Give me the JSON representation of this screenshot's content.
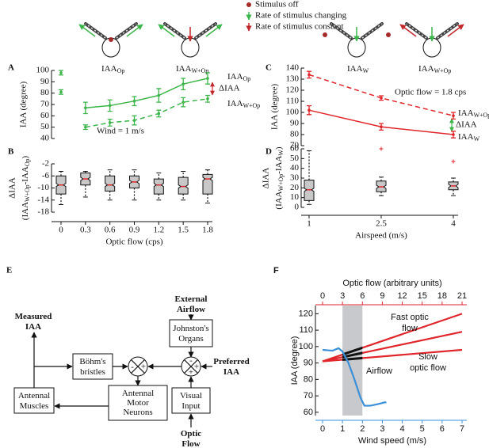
{
  "header": {
    "legend": [
      {
        "label": "Stimulus off"
      },
      {
        "label": "Rate of stimulus changing"
      },
      {
        "label": "Rate of stimulus constant"
      }
    ],
    "icons": [
      {
        "main": "IAA",
        "sub": "Op"
      },
      {
        "main": "IAA",
        "sub": "W+Op"
      },
      {
        "main": "IAA",
        "sub": "W"
      },
      {
        "main": "IAA",
        "sub": "W+Op"
      }
    ]
  },
  "chart_data": [
    {
      "panel": "A",
      "type": "line",
      "ylabel": "IAA (degree)",
      "xlim": [
        0,
        1.8
      ],
      "ylim": [
        40,
        100
      ],
      "yticks": [
        40,
        50,
        60,
        70,
        80,
        90,
        100
      ],
      "series": [
        {
          "name": {
            "main": "IAA",
            "sub": "Op"
          },
          "color": "#3cb54a",
          "line": "solid",
          "x": [
            0.3,
            0.6,
            0.9,
            1.2,
            1.5,
            1.8
          ],
          "values": [
            67,
            69,
            73,
            78,
            88,
            93
          ],
          "errors": [
            5,
            5,
            4,
            6,
            5,
            5
          ]
        },
        {
          "name": {
            "main": "IAA",
            "sub": "W+Op"
          },
          "color": "#3cb54a",
          "line": "dashed",
          "x": [
            0.3,
            0.6,
            0.9,
            1.2,
            1.5,
            1.8
          ],
          "values": [
            50,
            54,
            56,
            62,
            72,
            75
          ],
          "errors": [
            2,
            3,
            4,
            3,
            4,
            3
          ]
        },
        {
          "color": "#3cb54a",
          "line": "none",
          "x": [
            0
          ],
          "values": [
            98
          ],
          "errors": [
            2
          ]
        },
        {
          "color": "#3cb54a",
          "line": "none",
          "x": [
            0
          ],
          "values": [
            81
          ],
          "errors": [
            2
          ]
        }
      ],
      "annotations": [
        {
          "text": "ΔIAA",
          "color": "#e0262b"
        },
        {
          "text": "Wind = 1 m/s"
        }
      ]
    },
    {
      "panel": "B",
      "type": "box",
      "ylabel": "ΔIAA",
      "ylabel2": [
        {
          "text": "(IAA"
        },
        {
          "text": "W+Op",
          "sub": true
        },
        {
          "text": "-IAA"
        },
        {
          "text": "Op",
          "sub": true
        },
        {
          "text": ")"
        }
      ],
      "xlabel": "Optic flow  (cps)",
      "x": [
        0,
        0.3,
        0.6,
        0.9,
        1.2,
        1.5,
        1.8
      ],
      "xlim": [
        0,
        1.8
      ],
      "xticks": [
        0,
        0.3,
        0.6,
        0.9,
        1.2,
        1.5,
        1.8
      ],
      "ylim": [
        -18,
        -2
      ],
      "yticks": [
        -2,
        -6,
        -10,
        -14,
        -18
      ],
      "color": "#c8c8c8",
      "median_color": "#e0262b",
      "boxes": [
        {
          "whisker_low": -15.5,
          "q1": -12,
          "median": -9,
          "q3": -6,
          "whisker_high": -4.5,
          "outliers": []
        },
        {
          "whisker_low": -13,
          "q1": -9,
          "median": -7,
          "q3": -5,
          "whisker_high": -4.5,
          "outliers": []
        },
        {
          "whisker_low": -14,
          "q1": -11,
          "median": -9,
          "q3": -6,
          "whisker_high": -4,
          "outliers": []
        },
        {
          "whisker_low": -14,
          "q1": -10,
          "median": -8,
          "q3": -6,
          "whisker_high": -4,
          "outliers": []
        },
        {
          "whisker_low": -14,
          "q1": -12,
          "median": -9,
          "q3": -7,
          "whisker_high": -5,
          "outliers": []
        },
        {
          "whisker_low": -14,
          "q1": -12,
          "median": -9.5,
          "q3": -6.5,
          "whisker_high": -4.5,
          "outliers": []
        },
        {
          "whisker_low": -15,
          "q1": -12,
          "median": -7,
          "q3": -5.5,
          "whisker_high": -4,
          "outliers": []
        }
      ]
    },
    {
      "panel": "C",
      "type": "line",
      "ylabel": "IAA (degree)",
      "xlim": [
        1,
        4
      ],
      "ylim": [
        70,
        140
      ],
      "yticks": [
        70,
        80,
        90,
        100,
        110,
        120,
        130,
        140
      ],
      "series": [
        {
          "name": {
            "main": "IAA",
            "sub": "W+Op"
          },
          "color": "#e0262b",
          "line": "dashed",
          "x": [
            1,
            2.5,
            4
          ],
          "values": [
            134,
            113,
            97
          ],
          "errors": [
            3,
            2,
            3
          ]
        },
        {
          "name": {
            "main": "IAA",
            "sub": "W"
          },
          "color": "#e0262b",
          "line": "solid",
          "x": [
            1,
            2.5,
            4
          ],
          "values": [
            102,
            87,
            80
          ],
          "errors": [
            4,
            3,
            3
          ]
        }
      ],
      "annotations": [
        {
          "text": "Optic flow = 1.8 cps"
        },
        {
          "text": "ΔIAA",
          "color": "#3cb54a"
        }
      ]
    },
    {
      "panel": "D",
      "type": "box",
      "ylabel": "ΔIAA",
      "ylabel2": [
        {
          "text": "(IAA"
        },
        {
          "text": "W+Op",
          "sub": true
        },
        {
          "text": "-IAA"
        },
        {
          "text": "W",
          "sub": true
        },
        {
          "text": ")"
        }
      ],
      "xlabel": "Airspeed (m/s)",
      "x": [
        1,
        2.5,
        4
      ],
      "xlim": [
        1,
        4
      ],
      "xticks": [
        1,
        2.5,
        4
      ],
      "ylim": [
        0,
        60
      ],
      "yticks": [
        0,
        10,
        20,
        30,
        40,
        50,
        60
      ],
      "color": "#c8c8c8",
      "median_color": "#e0262b",
      "boxes": [
        {
          "whisker_low": 3,
          "q1": 7,
          "median": 18,
          "q3": 28,
          "whisker_high": 58,
          "outliers": []
        },
        {
          "whisker_low": 12,
          "q1": 16,
          "median": 21,
          "q3": 27,
          "whisker_high": 31,
          "outliers": [
            60
          ]
        },
        {
          "whisker_low": 12,
          "q1": 18,
          "median": 22,
          "q3": 26,
          "whisker_high": 30,
          "outliers": [
            47
          ]
        }
      ]
    },
    {
      "panel": "F",
      "type": "line",
      "ylabel": "IAA (degree)",
      "xlabel": "Wind speed (m/s)",
      "xlim": [
        0,
        7
      ],
      "xticks": [
        0,
        1,
        2,
        3,
        4,
        5,
        6,
        7
      ],
      "x_color": "#3a8fd9",
      "x2label": "Optic flow (arbitrary units)",
      "x2lim": [
        0,
        21
      ],
      "x2ticks": [
        0,
        3,
        6,
        9,
        12,
        15,
        18,
        21
      ],
      "x2_color": "#e0262b",
      "ylim": [
        58,
        125
      ],
      "yticks": [
        60,
        70,
        80,
        90,
        100,
        110,
        120
      ],
      "shade": [
        1,
        2
      ],
      "shade_color": "#c8c9cd",
      "highlight_color": "#111111",
      "series": [
        {
          "color": "#e0262b",
          "axis": "x2",
          "line": "solid",
          "x": [
            0,
            21
          ],
          "values": [
            91,
            120
          ]
        },
        {
          "color": "#e0262b",
          "axis": "x2",
          "line": "solid",
          "x": [
            0,
            21
          ],
          "values": [
            91,
            109
          ]
        },
        {
          "color": "#e0262b",
          "axis": "x2",
          "line": "solid",
          "x": [
            0,
            21
          ],
          "values": [
            91,
            98
          ]
        },
        {
          "name": "Airflow",
          "color": "#3a8fd9",
          "line": "solid",
          "x": [
            0,
            0.5,
            0.8,
            1,
            1.3,
            1.6,
            1.9,
            2.1,
            2.4,
            2.8,
            3.1,
            3.2
          ],
          "values": [
            98,
            97.5,
            99,
            97,
            90,
            80,
            69,
            64,
            64,
            65,
            66,
            66
          ]
        }
      ],
      "annotations": [
        {
          "lines": [
            "Fast optic",
            "flow"
          ],
          "color": "#e0262b"
        },
        {
          "lines": [
            "Slow",
            "optic flow"
          ],
          "color": "#e0262b"
        }
      ]
    }
  ],
  "diagram": {
    "panel": "E",
    "nodes": {
      "external_airflow": [
        "External",
        "Airflow"
      ],
      "johnstons_organs": [
        "Johnston's",
        "Organs"
      ],
      "preferred_iaa": [
        "Preferred",
        "IAA"
      ],
      "visual_input": [
        "Visual",
        "Input"
      ],
      "optic_flow": [
        "Optic",
        "Flow"
      ],
      "bohms_bristles": [
        "Böhm's",
        "bristles"
      ],
      "motor_neurons": [
        "Antennal",
        "Motor",
        "Neurons"
      ],
      "antennal_muscles": [
        "Antennal",
        "Muscles"
      ],
      "measured_iaa": [
        "Measured",
        "IAA"
      ]
    },
    "junctions": [
      {
        "signs": [
          "-",
          "+",
          "+"
        ]
      },
      {
        "signs": [
          "-",
          "+"
        ]
      }
    ]
  }
}
